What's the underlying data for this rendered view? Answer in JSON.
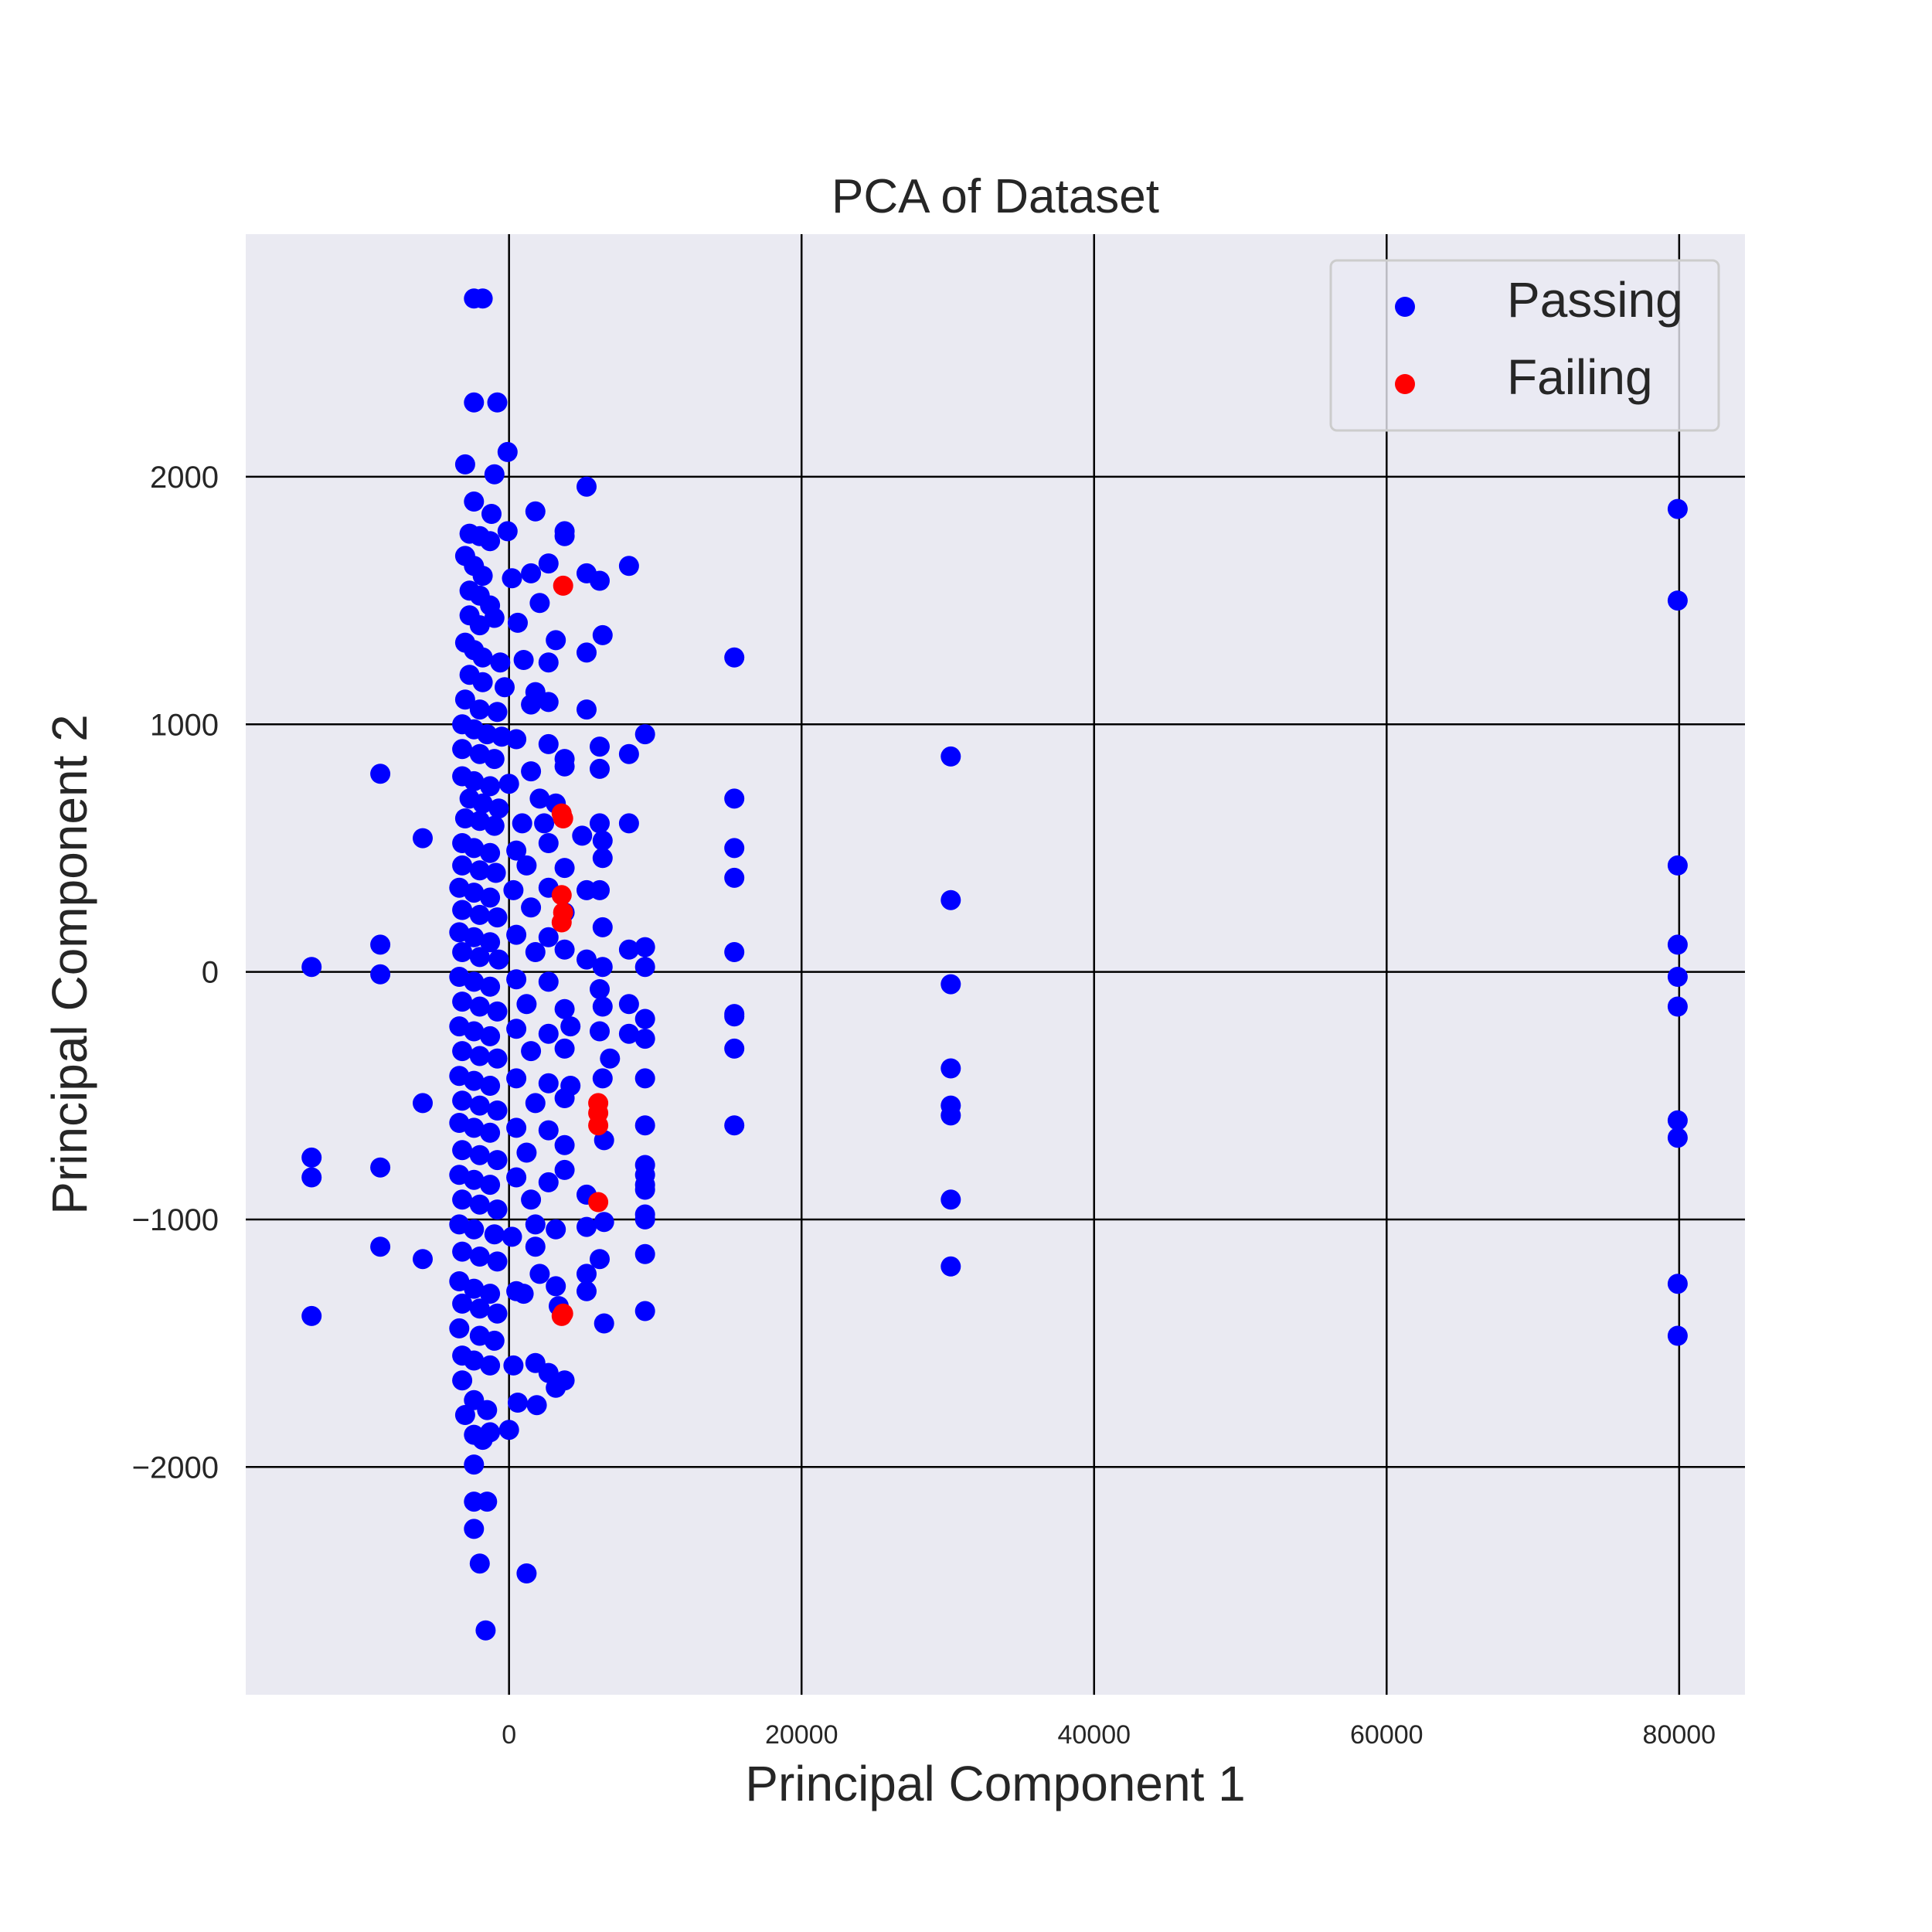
{
  "chart_data": {
    "type": "scatter",
    "title": "PCA of Dataset",
    "xlabel": "Principal Component 1",
    "ylabel": "Principal Component 2",
    "xlim": [
      -18000,
      84500
    ],
    "ylim": [
      -2920,
      2980
    ],
    "x_ticks": [
      0,
      20000,
      40000,
      60000,
      80000
    ],
    "y_ticks": [
      -2000,
      -1000,
      0,
      1000,
      2000
    ],
    "x_tick_labels": [
      "0",
      "20000",
      "40000",
      "60000",
      "80000"
    ],
    "y_tick_labels": [
      "−2000",
      "−1000",
      "0",
      "1000",
      "2000"
    ],
    "grid": true,
    "legend_position": "top-right",
    "series": [
      {
        "name": "Passing",
        "color": "#0000ff",
        "points": [
          [
            -2400,
            2720
          ],
          [
            -1800,
            2720
          ],
          [
            -2400,
            2300
          ],
          [
            -800,
            2300
          ],
          [
            -3000,
            2050
          ],
          [
            -1000,
            2010
          ],
          [
            -100,
            2100
          ],
          [
            5300,
            1960
          ],
          [
            -2400,
            1900
          ],
          [
            -1200,
            1850
          ],
          [
            1800,
            1860
          ],
          [
            -100,
            1780
          ],
          [
            -2700,
            1770
          ],
          [
            -2000,
            1760
          ],
          [
            -1300,
            1740
          ],
          [
            3800,
            1780
          ],
          [
            3800,
            1760
          ],
          [
            -3000,
            1680
          ],
          [
            -2400,
            1640
          ],
          [
            -1800,
            1600
          ],
          [
            200,
            1590
          ],
          [
            1500,
            1610
          ],
          [
            2700,
            1650
          ],
          [
            5300,
            1610
          ],
          [
            6200,
            1580
          ],
          [
            8200,
            1640
          ],
          [
            -2700,
            1540
          ],
          [
            -2000,
            1520
          ],
          [
            -1300,
            1480
          ],
          [
            2100,
            1490
          ],
          [
            -2700,
            1440
          ],
          [
            -1000,
            1430
          ],
          [
            -2000,
            1400
          ],
          [
            600,
            1410
          ],
          [
            -3000,
            1330
          ],
          [
            -2400,
            1300
          ],
          [
            3200,
            1340
          ],
          [
            6400,
            1360
          ],
          [
            -1800,
            1270
          ],
          [
            -600,
            1250
          ],
          [
            1000,
            1260
          ],
          [
            2700,
            1250
          ],
          [
            5300,
            1290
          ],
          [
            15400,
            1270
          ],
          [
            -2700,
            1200
          ],
          [
            -1800,
            1170
          ],
          [
            -300,
            1150
          ],
          [
            1800,
            1130
          ],
          [
            -3000,
            1100
          ],
          [
            -2000,
            1060
          ],
          [
            -800,
            1050
          ],
          [
            1500,
            1080
          ],
          [
            2700,
            1090
          ],
          [
            5300,
            1060
          ],
          [
            -3200,
            1000
          ],
          [
            -2400,
            980
          ],
          [
            -1500,
            960
          ],
          [
            -500,
            950
          ],
          [
            500,
            940
          ],
          [
            -3200,
            900
          ],
          [
            -2000,
            880
          ],
          [
            -1000,
            860
          ],
          [
            2700,
            920
          ],
          [
            3800,
            860
          ],
          [
            6200,
            910
          ],
          [
            8200,
            880
          ],
          [
            9300,
            960
          ],
          [
            -8800,
            800
          ],
          [
            -3200,
            790
          ],
          [
            -2400,
            770
          ],
          [
            -1300,
            750
          ],
          [
            0,
            760
          ],
          [
            1500,
            810
          ],
          [
            3800,
            830
          ],
          [
            6200,
            820
          ],
          [
            -2700,
            700
          ],
          [
            -1800,
            680
          ],
          [
            -700,
            660
          ],
          [
            2100,
            700
          ],
          [
            3200,
            680
          ],
          [
            15400,
            700
          ],
          [
            -3000,
            620
          ],
          [
            -2000,
            610
          ],
          [
            -1000,
            590
          ],
          [
            900,
            600
          ],
          [
            2400,
            600
          ],
          [
            6200,
            600
          ],
          [
            8200,
            600
          ],
          [
            -5900,
            540
          ],
          [
            -3200,
            520
          ],
          [
            -2400,
            500
          ],
          [
            -1300,
            480
          ],
          [
            500,
            490
          ],
          [
            2700,
            520
          ],
          [
            5000,
            550
          ],
          [
            6400,
            530
          ],
          [
            15400,
            500
          ],
          [
            -3200,
            430
          ],
          [
            -2000,
            410
          ],
          [
            -900,
            400
          ],
          [
            1200,
            430
          ],
          [
            3800,
            420
          ],
          [
            6400,
            460
          ],
          [
            15400,
            380
          ],
          [
            -3400,
            340
          ],
          [
            -2400,
            320
          ],
          [
            -1300,
            300
          ],
          [
            300,
            330
          ],
          [
            2700,
            340
          ],
          [
            5300,
            330
          ],
          [
            6200,
            330
          ],
          [
            -3200,
            250
          ],
          [
            -2000,
            230
          ],
          [
            -800,
            220
          ],
          [
            1500,
            260
          ],
          [
            3800,
            240
          ],
          [
            6400,
            180
          ],
          [
            -3400,
            160
          ],
          [
            -2400,
            140
          ],
          [
            -1300,
            120
          ],
          [
            500,
            150
          ],
          [
            2700,
            140
          ],
          [
            -8800,
            110
          ],
          [
            -3200,
            80
          ],
          [
            -2000,
            60
          ],
          [
            -700,
            50
          ],
          [
            1800,
            80
          ],
          [
            3800,
            90
          ],
          [
            5300,
            50
          ],
          [
            6400,
            20
          ],
          [
            8200,
            90
          ],
          [
            9300,
            100
          ],
          [
            9300,
            20
          ],
          [
            15400,
            80
          ],
          [
            -13500,
            20
          ],
          [
            -8800,
            -10
          ],
          [
            -3400,
            -20
          ],
          [
            -2400,
            -40
          ],
          [
            -1300,
            -60
          ],
          [
            500,
            -30
          ],
          [
            2700,
            -40
          ],
          [
            6200,
            -70
          ],
          [
            -3200,
            -120
          ],
          [
            -2000,
            -140
          ],
          [
            -800,
            -160
          ],
          [
            1200,
            -130
          ],
          [
            3800,
            -150
          ],
          [
            6400,
            -140
          ],
          [
            8200,
            -130
          ],
          [
            9300,
            -190
          ],
          [
            15400,
            -170
          ],
          [
            15400,
            -180
          ],
          [
            -3400,
            -220
          ],
          [
            -2400,
            -240
          ],
          [
            -1300,
            -260
          ],
          [
            500,
            -230
          ],
          [
            2700,
            -250
          ],
          [
            4200,
            -220
          ],
          [
            6200,
            -240
          ],
          [
            8200,
            -250
          ],
          [
            9300,
            -270
          ],
          [
            -3200,
            -320
          ],
          [
            -2000,
            -340
          ],
          [
            -800,
            -350
          ],
          [
            1500,
            -320
          ],
          [
            3800,
            -310
          ],
          [
            6900,
            -350
          ],
          [
            15400,
            -310
          ],
          [
            -3400,
            -420
          ],
          [
            -2400,
            -440
          ],
          [
            -1300,
            -460
          ],
          [
            500,
            -430
          ],
          [
            2700,
            -450
          ],
          [
            4200,
            -460
          ],
          [
            6400,
            -430
          ],
          [
            9300,
            -430
          ],
          [
            -5900,
            -530
          ],
          [
            -3200,
            -520
          ],
          [
            -2000,
            -540
          ],
          [
            -800,
            -560
          ],
          [
            1800,
            -530
          ],
          [
            3800,
            -510
          ],
          [
            -3400,
            -610
          ],
          [
            -2400,
            -630
          ],
          [
            -1300,
            -650
          ],
          [
            500,
            -630
          ],
          [
            2700,
            -640
          ],
          [
            6500,
            -680
          ],
          [
            9300,
            -620
          ],
          [
            15400,
            -620
          ],
          [
            -3200,
            -720
          ],
          [
            -2000,
            -740
          ],
          [
            -800,
            -760
          ],
          [
            1200,
            -730
          ],
          [
            3800,
            -700
          ],
          [
            -13500,
            -750
          ],
          [
            -8800,
            -790
          ],
          [
            -3400,
            -820
          ],
          [
            -2400,
            -840
          ],
          [
            -1300,
            -860
          ],
          [
            500,
            -830
          ],
          [
            2700,
            -850
          ],
          [
            3800,
            -800
          ],
          [
            9300,
            -780
          ],
          [
            9300,
            -820
          ],
          [
            -13500,
            -830
          ],
          [
            -3200,
            -920
          ],
          [
            -2000,
            -940
          ],
          [
            -800,
            -960
          ],
          [
            1500,
            -920
          ],
          [
            5300,
            -900
          ],
          [
            9300,
            -860
          ],
          [
            9300,
            -880
          ],
          [
            9300,
            -980
          ],
          [
            9300,
            -1000
          ],
          [
            -3400,
            -1020
          ],
          [
            -2400,
            -1040
          ],
          [
            -1000,
            -1060
          ],
          [
            200,
            -1070
          ],
          [
            1800,
            -1020
          ],
          [
            3200,
            -1040
          ],
          [
            5300,
            -1030
          ],
          [
            6500,
            -1010
          ],
          [
            -8800,
            -1110
          ],
          [
            -5900,
            -1160
          ],
          [
            -3200,
            -1130
          ],
          [
            -2000,
            -1150
          ],
          [
            -800,
            -1170
          ],
          [
            1800,
            -1110
          ],
          [
            2100,
            -1220
          ],
          [
            3200,
            -1270
          ],
          [
            5300,
            -1220
          ],
          [
            6200,
            -1160
          ],
          [
            9300,
            -1140
          ],
          [
            -3400,
            -1250
          ],
          [
            -2400,
            -1280
          ],
          [
            -1300,
            -1300
          ],
          [
            500,
            -1290
          ],
          [
            1000,
            -1300
          ],
          [
            5300,
            -1290
          ],
          [
            -3200,
            -1340
          ],
          [
            -2000,
            -1360
          ],
          [
            -800,
            -1380
          ],
          [
            3400,
            -1350
          ],
          [
            9300,
            -1370
          ],
          [
            -13500,
            -1390
          ],
          [
            -3400,
            -1440
          ],
          [
            -2000,
            -1470
          ],
          [
            -1000,
            -1490
          ],
          [
            6500,
            -1420
          ],
          [
            -3200,
            -1550
          ],
          [
            -2400,
            -1570
          ],
          [
            -1300,
            -1590
          ],
          [
            300,
            -1590
          ],
          [
            1800,
            -1580
          ],
          [
            2700,
            -1620
          ],
          [
            3200,
            -1680
          ],
          [
            3800,
            -1650
          ],
          [
            -3200,
            -1650
          ],
          [
            -2400,
            -1730
          ],
          [
            -1500,
            -1770
          ],
          [
            600,
            -1740
          ],
          [
            1900,
            -1750
          ],
          [
            -3000,
            -1790
          ],
          [
            -2400,
            -1870
          ],
          [
            -1800,
            -1890
          ],
          [
            -1300,
            -1860
          ],
          [
            0,
            -1850
          ],
          [
            -2400,
            -1990
          ],
          [
            -2400,
            -2140
          ],
          [
            -1500,
            -2140
          ],
          [
            -2400,
            -2250
          ],
          [
            -2000,
            -2390
          ],
          [
            1200,
            -2430
          ],
          [
            -1600,
            -2660
          ],
          [
            30200,
            870
          ],
          [
            30200,
            290
          ],
          [
            30200,
            -50
          ],
          [
            30200,
            -390
          ],
          [
            30200,
            -540
          ],
          [
            30200,
            -580
          ],
          [
            30200,
            -920
          ],
          [
            30200,
            -1190
          ],
          [
            79900,
            1870
          ],
          [
            79900,
            1500
          ],
          [
            79900,
            430
          ],
          [
            79900,
            110
          ],
          [
            79900,
            -20
          ],
          [
            79900,
            -140
          ],
          [
            79900,
            -600
          ],
          [
            79900,
            -670
          ],
          [
            79900,
            -1260
          ],
          [
            79900,
            -1470
          ]
        ]
      },
      {
        "name": "Failing",
        "color": "#ff0000",
        "points": [
          [
            3700,
            1560
          ],
          [
            3600,
            640
          ],
          [
            3700,
            620
          ],
          [
            3600,
            310
          ],
          [
            3700,
            240
          ],
          [
            3600,
            200
          ],
          [
            6100,
            -530
          ],
          [
            6100,
            -570
          ],
          [
            6100,
            -620
          ],
          [
            6100,
            -930
          ],
          [
            3700,
            -1380
          ],
          [
            3600,
            -1390
          ]
        ]
      }
    ]
  }
}
